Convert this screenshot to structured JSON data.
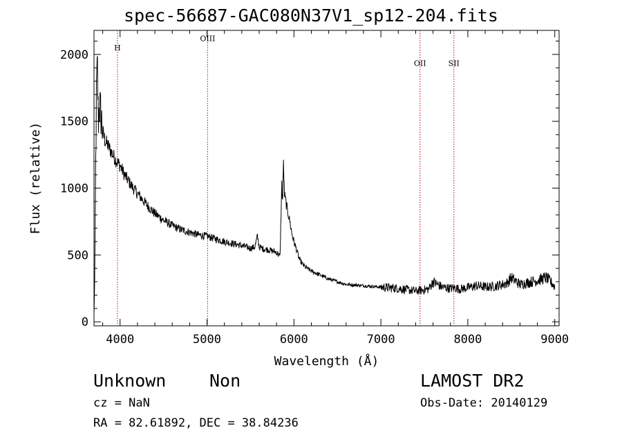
{
  "title": "spec-56687-GAC080N37V1_sp12-204.fits",
  "chart_data": {
    "type": "line",
    "xlabel": "Wavelength (Å)",
    "ylabel": "Flux (relative)",
    "xlim": [
      3700,
      9050
    ],
    "ylim": [
      -30,
      2180
    ],
    "x_ticks": [
      4000,
      5000,
      6000,
      7000,
      8000,
      9000
    ],
    "y_ticks": [
      0,
      500,
      1000,
      1500,
      2000
    ],
    "line_color": "#000000",
    "lines": [
      {
        "label": "H",
        "x": 3970,
        "label_y": 2030
      },
      {
        "label": "OIII",
        "x": 5007,
        "label_y": 2100
      },
      {
        "label": "OII",
        "x": 7450,
        "label_y": 1915
      },
      {
        "label": "SII",
        "x": 7840,
        "label_y": 1915
      }
    ],
    "line_marker_color": "#cc0000",
    "series": [
      {
        "x": [
          3700,
          3710,
          3720,
          3730,
          3740,
          3750,
          3760,
          3780,
          3800,
          3830,
          3860,
          3900,
          3950,
          4000,
          4050,
          4100,
          4150,
          4200,
          4300,
          4400,
          4500,
          4600,
          4700,
          4800,
          4900,
          5000,
          5100,
          5200,
          5300,
          5400,
          5500,
          5550,
          5580,
          5600,
          5650,
          5700,
          5750,
          5800,
          5840,
          5860,
          5870,
          5880,
          5890,
          5900,
          5920,
          5950,
          5980,
          6000,
          6030,
          6060,
          6100,
          6150,
          6200,
          6300,
          6400,
          6500,
          6600,
          6700,
          6800,
          6900,
          7000,
          7100,
          7200,
          7300,
          7400,
          7450,
          7500,
          7550,
          7600,
          7650,
          7700,
          7750,
          7800,
          7850,
          7900,
          7950,
          8000,
          8100,
          8200,
          8300,
          8400,
          8450,
          8500,
          8600,
          8700,
          8800,
          8850,
          8900,
          8950,
          8980,
          9000
        ],
        "y": [
          50,
          380,
          1200,
          1750,
          1880,
          1500,
          1620,
          1550,
          1420,
          1350,
          1320,
          1270,
          1210,
          1170,
          1100,
          1050,
          1000,
          960,
          880,
          810,
          760,
          720,
          690,
          670,
          650,
          640,
          620,
          600,
          585,
          570,
          550,
          560,
          640,
          560,
          545,
          540,
          530,
          520,
          490,
          1030,
          880,
          1200,
          960,
          920,
          850,
          760,
          650,
          600,
          540,
          470,
          430,
          400,
          380,
          350,
          320,
          300,
          280,
          275,
          270,
          265,
          260,
          255,
          250,
          240,
          230,
          235,
          240,
          245,
          300,
          280,
          260,
          255,
          250,
          255,
          245,
          250,
          255,
          270,
          260,
          265,
          280,
          290,
          330,
          280,
          295,
          310,
          320,
          330,
          300,
          280,
          260
        ]
      }
    ]
  },
  "info": {
    "object_class": "Unknown",
    "object_subclass": "Non",
    "survey": "LAMOST DR2",
    "cz": "cz = NaN",
    "obs_date": "Obs-Date: 20140129",
    "ra_dec": "RA =  82.61892, DEC =  38.84236"
  }
}
